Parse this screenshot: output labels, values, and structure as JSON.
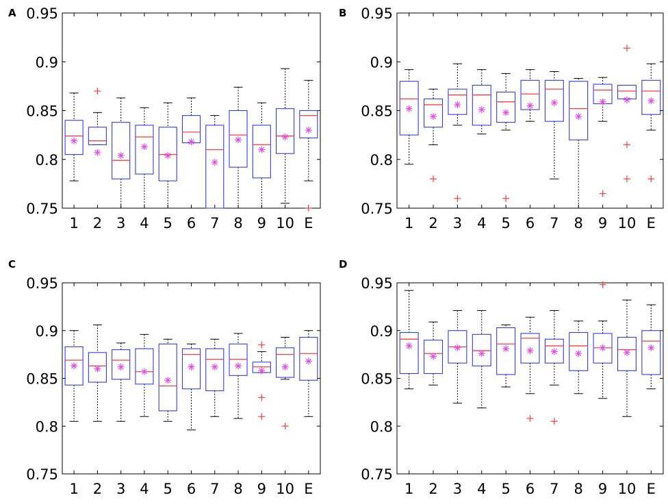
{
  "colors": {
    "box": "#2f3cf0",
    "median": "#ff3c3c",
    "mean": "#e24ce2",
    "outlier": "#ff3c3c",
    "whisker": "#000000",
    "frame": "#000000"
  },
  "chart_data": [
    {
      "type": "box",
      "panel": "A",
      "categories": [
        "1",
        "2",
        "3",
        "4",
        "5",
        "6",
        "7",
        "8",
        "9",
        "10",
        "E"
      ],
      "ylim": [
        0.75,
        0.95
      ],
      "yticks": [
        "0.75",
        "0.8",
        "0.85",
        "0.9",
        "0.95"
      ],
      "boxes": [
        {
          "whisker_low": 0.778,
          "q1": 0.805,
          "median": 0.824,
          "q3": 0.84,
          "whisker_high": 0.868,
          "mean": 0.819,
          "outliers": []
        },
        {
          "whisker_low": 0.815,
          "q1": 0.815,
          "median": 0.819,
          "q3": 0.833,
          "whisker_high": 0.848,
          "mean": 0.807,
          "outliers": [
            0.87
          ]
        },
        {
          "whisker_low": 0.75,
          "q1": 0.78,
          "median": 0.799,
          "q3": 0.838,
          "whisker_high": 0.863,
          "mean": 0.804,
          "outliers": []
        },
        {
          "whisker_low": 0.75,
          "q1": 0.785,
          "median": 0.823,
          "q3": 0.835,
          "whisker_high": 0.853,
          "mean": 0.813,
          "outliers": []
        },
        {
          "whisker_low": 0.75,
          "q1": 0.778,
          "median": 0.805,
          "q3": 0.833,
          "whisker_high": 0.858,
          "mean": 0.804,
          "outliers": []
        },
        {
          "whisker_low": 0.817,
          "q1": 0.817,
          "median": 0.828,
          "q3": 0.845,
          "whisker_high": 0.863,
          "mean": 0.818,
          "outliers": []
        },
        {
          "whisker_low": 0.75,
          "q1": 0.75,
          "median": 0.81,
          "q3": 0.835,
          "whisker_high": 0.845,
          "mean": 0.797,
          "outliers": []
        },
        {
          "whisker_low": 0.75,
          "q1": 0.792,
          "median": 0.825,
          "q3": 0.85,
          "whisker_high": 0.874,
          "mean": 0.82,
          "outliers": []
        },
        {
          "whisker_low": 0.75,
          "q1": 0.781,
          "median": 0.815,
          "q3": 0.835,
          "whisker_high": 0.858,
          "mean": 0.81,
          "outliers": []
        },
        {
          "whisker_low": 0.755,
          "q1": 0.806,
          "median": 0.824,
          "q3": 0.852,
          "whisker_high": 0.893,
          "mean": 0.823,
          "outliers": []
        },
        {
          "whisker_low": 0.778,
          "q1": 0.822,
          "median": 0.845,
          "q3": 0.85,
          "whisker_high": 0.881,
          "mean": 0.83,
          "outliers": [
            0.75
          ]
        }
      ]
    },
    {
      "type": "box",
      "panel": "B",
      "categories": [
        "1",
        "2",
        "3",
        "4",
        "5",
        "6",
        "7",
        "8",
        "9",
        "10",
        "E"
      ],
      "ylim": [
        0.75,
        0.95
      ],
      "yticks": [
        "0.75",
        "0.8",
        "0.85",
        "0.9",
        "0.95"
      ],
      "boxes": [
        {
          "whisker_low": 0.795,
          "q1": 0.825,
          "median": 0.862,
          "q3": 0.88,
          "whisker_high": 0.892,
          "mean": 0.852,
          "outliers": []
        },
        {
          "whisker_low": 0.815,
          "q1": 0.833,
          "median": 0.856,
          "q3": 0.862,
          "whisker_high": 0.872,
          "mean": 0.844,
          "outliers": [
            0.78
          ]
        },
        {
          "whisker_low": 0.835,
          "q1": 0.846,
          "median": 0.866,
          "q3": 0.872,
          "whisker_high": 0.898,
          "mean": 0.856,
          "outliers": [
            0.76
          ]
        },
        {
          "whisker_low": 0.826,
          "q1": 0.835,
          "median": 0.866,
          "q3": 0.876,
          "whisker_high": 0.892,
          "mean": 0.851,
          "outliers": []
        },
        {
          "whisker_low": 0.83,
          "q1": 0.838,
          "median": 0.859,
          "q3": 0.869,
          "whisker_high": 0.888,
          "mean": 0.848,
          "outliers": [
            0.76
          ]
        },
        {
          "whisker_low": 0.839,
          "q1": 0.851,
          "median": 0.867,
          "q3": 0.881,
          "whisker_high": 0.892,
          "mean": 0.855,
          "outliers": []
        },
        {
          "whisker_low": 0.78,
          "q1": 0.839,
          "median": 0.872,
          "q3": 0.881,
          "whisker_high": 0.89,
          "mean": 0.858,
          "outliers": []
        },
        {
          "whisker_low": 0.75,
          "q1": 0.82,
          "median": 0.852,
          "q3": 0.88,
          "whisker_high": 0.883,
          "mean": 0.844,
          "outliers": []
        },
        {
          "whisker_low": 0.839,
          "q1": 0.857,
          "median": 0.871,
          "q3": 0.877,
          "whisker_high": 0.884,
          "mean": 0.859,
          "outliers": [
            0.765
          ]
        },
        {
          "whisker_low": 0.862,
          "q1": 0.862,
          "median": 0.87,
          "q3": 0.876,
          "whisker_high": 0.876,
          "mean": 0.861,
          "outliers": [
            0.914,
            0.815,
            0.78
          ]
        },
        {
          "whisker_low": 0.83,
          "q1": 0.846,
          "median": 0.87,
          "q3": 0.881,
          "whisker_high": 0.898,
          "mean": 0.86,
          "outliers": [
            0.78
          ]
        }
      ]
    },
    {
      "type": "box",
      "panel": "C",
      "categories": [
        "1",
        "2",
        "3",
        "4",
        "5",
        "6",
        "7",
        "8",
        "9",
        "10",
        "E"
      ],
      "ylim": [
        0.75,
        0.95
      ],
      "yticks": [
        "0.75",
        "0.8",
        "0.85",
        "0.9",
        "0.95"
      ],
      "boxes": [
        {
          "whisker_low": 0.805,
          "q1": 0.843,
          "median": 0.869,
          "q3": 0.883,
          "whisker_high": 0.9,
          "mean": 0.863,
          "outliers": []
        },
        {
          "whisker_low": 0.805,
          "q1": 0.846,
          "median": 0.863,
          "q3": 0.877,
          "whisker_high": 0.906,
          "mean": 0.86,
          "outliers": []
        },
        {
          "whisker_low": 0.805,
          "q1": 0.849,
          "median": 0.869,
          "q3": 0.88,
          "whisker_high": 0.887,
          "mean": 0.862,
          "outliers": []
        },
        {
          "whisker_low": 0.81,
          "q1": 0.844,
          "median": 0.857,
          "q3": 0.881,
          "whisker_high": 0.896,
          "mean": 0.857,
          "outliers": []
        },
        {
          "whisker_low": 0.805,
          "q1": 0.816,
          "median": 0.842,
          "q3": 0.886,
          "whisker_high": 0.891,
          "mean": 0.848,
          "outliers": []
        },
        {
          "whisker_low": 0.796,
          "q1": 0.839,
          "median": 0.875,
          "q3": 0.881,
          "whisker_high": 0.886,
          "mean": 0.862,
          "outliers": []
        },
        {
          "whisker_low": 0.81,
          "q1": 0.837,
          "median": 0.87,
          "q3": 0.881,
          "whisker_high": 0.891,
          "mean": 0.862,
          "outliers": []
        },
        {
          "whisker_low": 0.808,
          "q1": 0.853,
          "median": 0.87,
          "q3": 0.886,
          "whisker_high": 0.897,
          "mean": 0.863,
          "outliers": []
        },
        {
          "whisker_low": 0.856,
          "q1": 0.856,
          "median": 0.862,
          "q3": 0.867,
          "whisker_high": 0.878,
          "mean": 0.858,
          "outliers": [
            0.885,
            0.83,
            0.81
          ]
        },
        {
          "whisker_low": 0.849,
          "q1": 0.851,
          "median": 0.875,
          "q3": 0.882,
          "whisker_high": 0.893,
          "mean": 0.862,
          "outliers": [
            0.8
          ]
        },
        {
          "whisker_low": 0.81,
          "q1": 0.848,
          "median": 0.876,
          "q3": 0.893,
          "whisker_high": 0.9,
          "mean": 0.868,
          "outliers": []
        }
      ]
    },
    {
      "type": "box",
      "panel": "D",
      "categories": [
        "1",
        "2",
        "3",
        "4",
        "5",
        "6",
        "7",
        "8",
        "9",
        "10",
        "E"
      ],
      "ylim": [
        0.75,
        0.95
      ],
      "yticks": [
        "0.75",
        "0.8",
        "0.85",
        "0.9",
        "0.95"
      ],
      "boxes": [
        {
          "whisker_low": 0.839,
          "q1": 0.855,
          "median": 0.891,
          "q3": 0.898,
          "whisker_high": 0.942,
          "mean": 0.884,
          "outliers": []
        },
        {
          "whisker_low": 0.843,
          "q1": 0.855,
          "median": 0.876,
          "q3": 0.89,
          "whisker_high": 0.909,
          "mean": 0.873,
          "outliers": []
        },
        {
          "whisker_low": 0.824,
          "q1": 0.866,
          "median": 0.883,
          "q3": 0.9,
          "whisker_high": 0.921,
          "mean": 0.882,
          "outliers": []
        },
        {
          "whisker_low": 0.819,
          "q1": 0.863,
          "median": 0.879,
          "q3": 0.896,
          "whisker_high": 0.921,
          "mean": 0.876,
          "outliers": []
        },
        {
          "whisker_low": 0.841,
          "q1": 0.854,
          "median": 0.886,
          "q3": 0.903,
          "whisker_high": 0.906,
          "mean": 0.881,
          "outliers": []
        },
        {
          "whisker_low": 0.834,
          "q1": 0.866,
          "median": 0.892,
          "q3": 0.897,
          "whisker_high": 0.914,
          "mean": 0.879,
          "outliers": [
            0.808
          ]
        },
        {
          "whisker_low": 0.843,
          "q1": 0.866,
          "median": 0.884,
          "q3": 0.891,
          "whisker_high": 0.921,
          "mean": 0.878,
          "outliers": [
            0.805
          ]
        },
        {
          "whisker_low": 0.834,
          "q1": 0.858,
          "median": 0.884,
          "q3": 0.898,
          "whisker_high": 0.91,
          "mean": 0.876,
          "outliers": []
        },
        {
          "whisker_low": 0.829,
          "q1": 0.866,
          "median": 0.882,
          "q3": 0.897,
          "whisker_high": 0.91,
          "mean": 0.882,
          "outliers": [
            0.948
          ]
        },
        {
          "whisker_low": 0.81,
          "q1": 0.858,
          "median": 0.88,
          "q3": 0.893,
          "whisker_high": 0.932,
          "mean": 0.877,
          "outliers": []
        },
        {
          "whisker_low": 0.839,
          "q1": 0.854,
          "median": 0.889,
          "q3": 0.9,
          "whisker_high": 0.927,
          "mean": 0.882,
          "outliers": []
        }
      ]
    }
  ]
}
